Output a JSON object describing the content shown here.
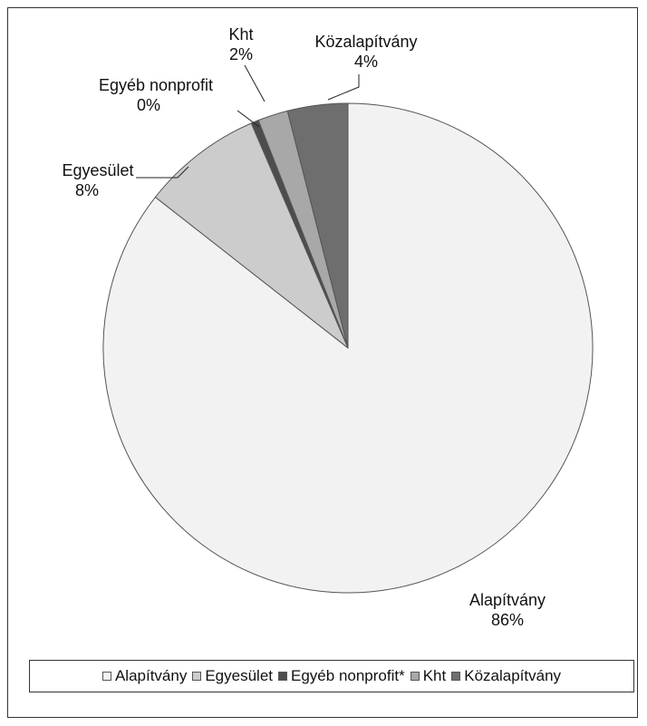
{
  "chart_data": {
    "type": "pie",
    "title": "",
    "categories": [
      "Alapítvány",
      "Egyesület",
      "Egyéb nonprofit*",
      "Kht",
      "Közalapítvány"
    ],
    "values": [
      86,
      8,
      0.5,
      2,
      4
    ],
    "slice_labels": [
      {
        "name": "Alapítvány",
        "pct": "86%"
      },
      {
        "name": "Egyesület",
        "pct": "8%"
      },
      {
        "name": "Egyéb nonprofit",
        "pct": "0%"
      },
      {
        "name": "Kht",
        "pct": "2%"
      },
      {
        "name": "Közalapítvány",
        "pct": "4%"
      }
    ],
    "colors": [
      "#f2f2f2",
      "#cccccc",
      "#4d4d4d",
      "#a8a8a8",
      "#6e6e6e"
    ],
    "start": "12 o'clock",
    "direction": "clockwise",
    "legend_position": "bottom"
  }
}
